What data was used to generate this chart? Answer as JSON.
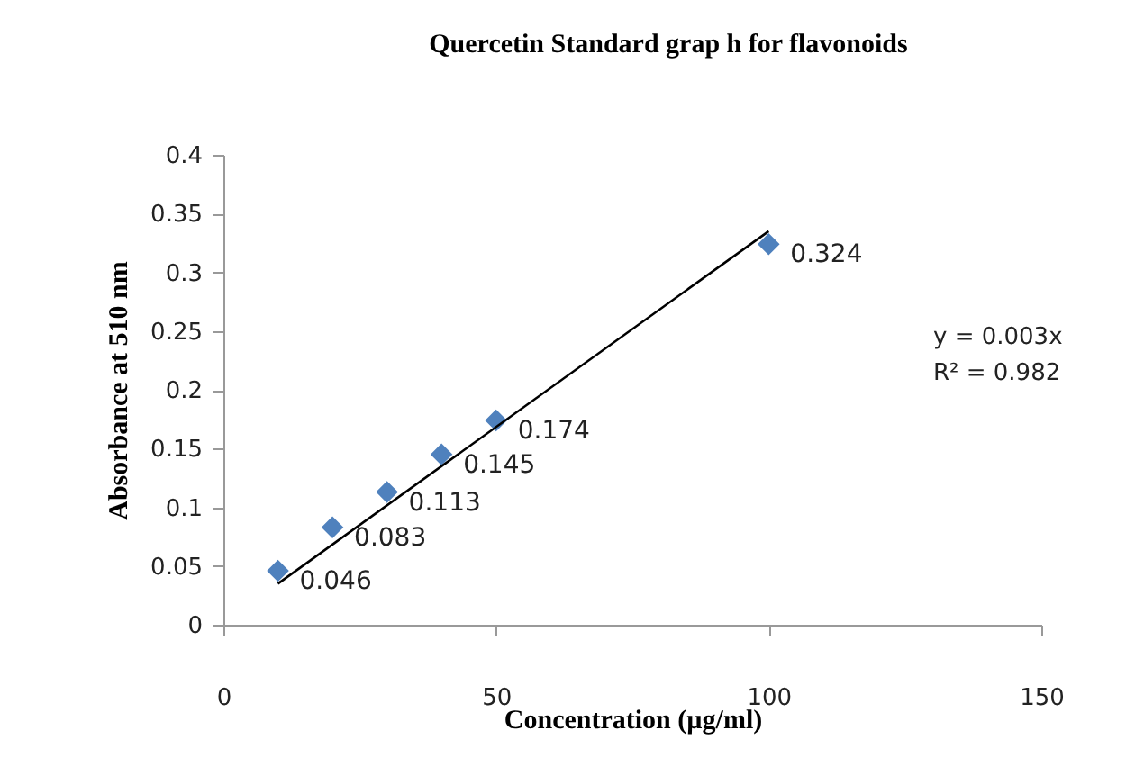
{
  "chart_data": {
    "type": "scatter",
    "title": "Quercetin Standard grap h for flavonoids",
    "xlabel": "Concentration (µg/ml)",
    "ylabel": "Absorbance at 510 nm",
    "x": [
      10,
      20,
      30,
      40,
      50,
      100
    ],
    "series": [
      {
        "color": "#4f81bd",
        "marker": "diamond",
        "values": [
          0.046,
          0.083,
          0.113,
          0.145,
          0.174,
          0.324
        ],
        "value_labels": [
          "0.046",
          "0.083",
          "0.113",
          "0.145",
          "0.174",
          "0.324"
        ]
      },
      {
        "type": "line",
        "color": "#000000",
        "x": [
          10,
          100
        ],
        "values": [
          0.035,
          0.335
        ]
      }
    ],
    "annotations": [
      "y = 0.003x",
      "R² = 0.982"
    ],
    "xlim": [
      0,
      150
    ],
    "xticks": [
      0,
      50,
      100,
      150
    ],
    "ylim": [
      0,
      0.4
    ],
    "yticks": [
      0,
      0.05,
      0.1,
      0.15,
      0.2,
      0.25,
      0.3,
      0.35,
      0.4
    ],
    "grid": false
  }
}
